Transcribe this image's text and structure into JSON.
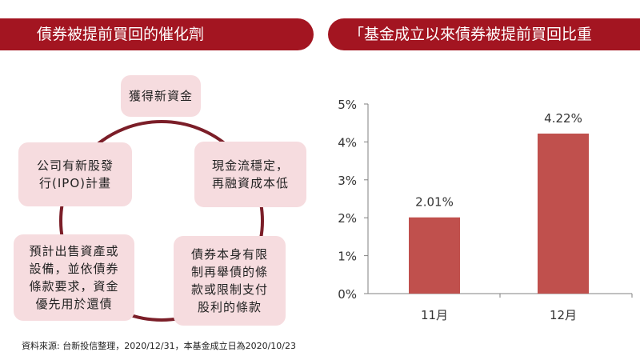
{
  "colors": {
    "accent": "#a31521",
    "bar": "#c0504d",
    "node_fill": "#f6dcdf",
    "ring": "#7b1e28"
  },
  "left_panel": {
    "title": "債券被提前買回的催化劑",
    "cycle_nodes": [
      "獲得新資金",
      "公司有新股發\n行(IPO)計畫",
      "現金流穩定，\n再融資成本低",
      "預計出售資產或\n設備，並依債券\n條款要求，資金\n優先用於還債",
      "債券本身有限\n制再舉債的條\n款或限制支付\n股利的條款"
    ]
  },
  "right_panel": {
    "title": "「基金成立以來債券被提前買回比重"
  },
  "footnote": "資料來源: 台新投信整理，2020/12/31，本基金成立日為2020/10/23",
  "chart_data": {
    "type": "bar",
    "title": "「基金成立以來債券被提前買回比重",
    "categories": [
      "11月",
      "12月"
    ],
    "values": [
      2.01,
      4.22
    ],
    "data_labels": [
      "2.01%",
      "4.22%"
    ],
    "ylim": [
      0,
      5
    ],
    "yticks": [
      0,
      1,
      2,
      3,
      4,
      5
    ],
    "ytick_labels": [
      "0%",
      "1%",
      "2%",
      "3%",
      "4%",
      "5%"
    ],
    "xlabel": "",
    "ylabel": "",
    "grid": false
  }
}
